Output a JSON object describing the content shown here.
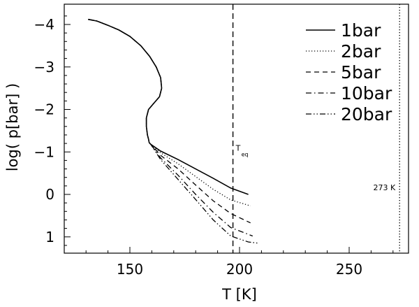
{
  "chart_data": {
    "type": "line",
    "xlabel": "T [K]",
    "ylabel": "log( p[bar] )",
    "xlim": [
      120,
      275
    ],
    "ylim": [
      1.4,
      -4.4
    ],
    "y_axis_inverted": true,
    "x_ticks": [
      150,
      200,
      250
    ],
    "y_ticks": [
      -4,
      -3,
      -2,
      -1,
      0,
      1
    ],
    "legend_position": "top-right",
    "grid": false,
    "common_profile": {
      "T": [
        131,
        135,
        140,
        145,
        150,
        155,
        159,
        162,
        164,
        164.5,
        163.5,
        161,
        158.5,
        157.5,
        157.5,
        158,
        158.5,
        158.8,
        159.5
      ],
      "logp": [
        -4.12,
        -4.08,
        -3.98,
        -3.87,
        -3.72,
        -3.5,
        -3.25,
        -3.0,
        -2.75,
        -2.5,
        -2.3,
        -2.15,
        -2.0,
        -1.8,
        -1.6,
        -1.4,
        -1.3,
        -1.22,
        -1.18
      ]
    },
    "series": [
      {
        "name": "1bar",
        "dash": "solid",
        "T": [
          159.5,
          164,
          172,
          180,
          188,
          196,
          204
        ],
        "logp": [
          -1.18,
          -1.02,
          -0.82,
          -0.6,
          -0.38,
          -0.15,
          0.0
        ]
      },
      {
        "name": "2bar",
        "dash": "dotted",
        "T": [
          159.5,
          164,
          172,
          180,
          188,
          196,
          205
        ],
        "logp": [
          -1.18,
          -0.98,
          -0.72,
          -0.42,
          -0.12,
          0.13,
          0.27
        ]
      },
      {
        "name": "5bar",
        "dash": "dashed",
        "T": [
          159.5,
          164,
          172,
          180,
          188,
          196,
          205
        ],
        "logp": [
          -1.18,
          -0.92,
          -0.6,
          -0.22,
          0.15,
          0.45,
          0.67
        ]
      },
      {
        "name": "10bar",
        "dash": "dash-dot",
        "T": [
          159.5,
          164,
          172,
          180,
          188,
          196,
          206
        ],
        "logp": [
          -1.18,
          -0.86,
          -0.45,
          0.0,
          0.42,
          0.78,
          0.98
        ]
      },
      {
        "name": "20bar",
        "dash": "dash-dot-dot",
        "T": [
          159.5,
          164,
          172,
          180,
          188,
          196,
          204,
          209
        ],
        "logp": [
          -1.18,
          -0.82,
          -0.35,
          0.12,
          0.6,
          0.98,
          1.12,
          1.15
        ]
      }
    ],
    "reference_lines": [
      {
        "x": 197,
        "style": "dashed",
        "label": "T",
        "label_sub": "eq",
        "label_at_logp": -1.0
      },
      {
        "x": 273,
        "style": "dotted",
        "label": "273 K",
        "label_at_logp": 0.0
      }
    ]
  },
  "colors": {
    "line": "#000000",
    "background": "#ffffff"
  }
}
